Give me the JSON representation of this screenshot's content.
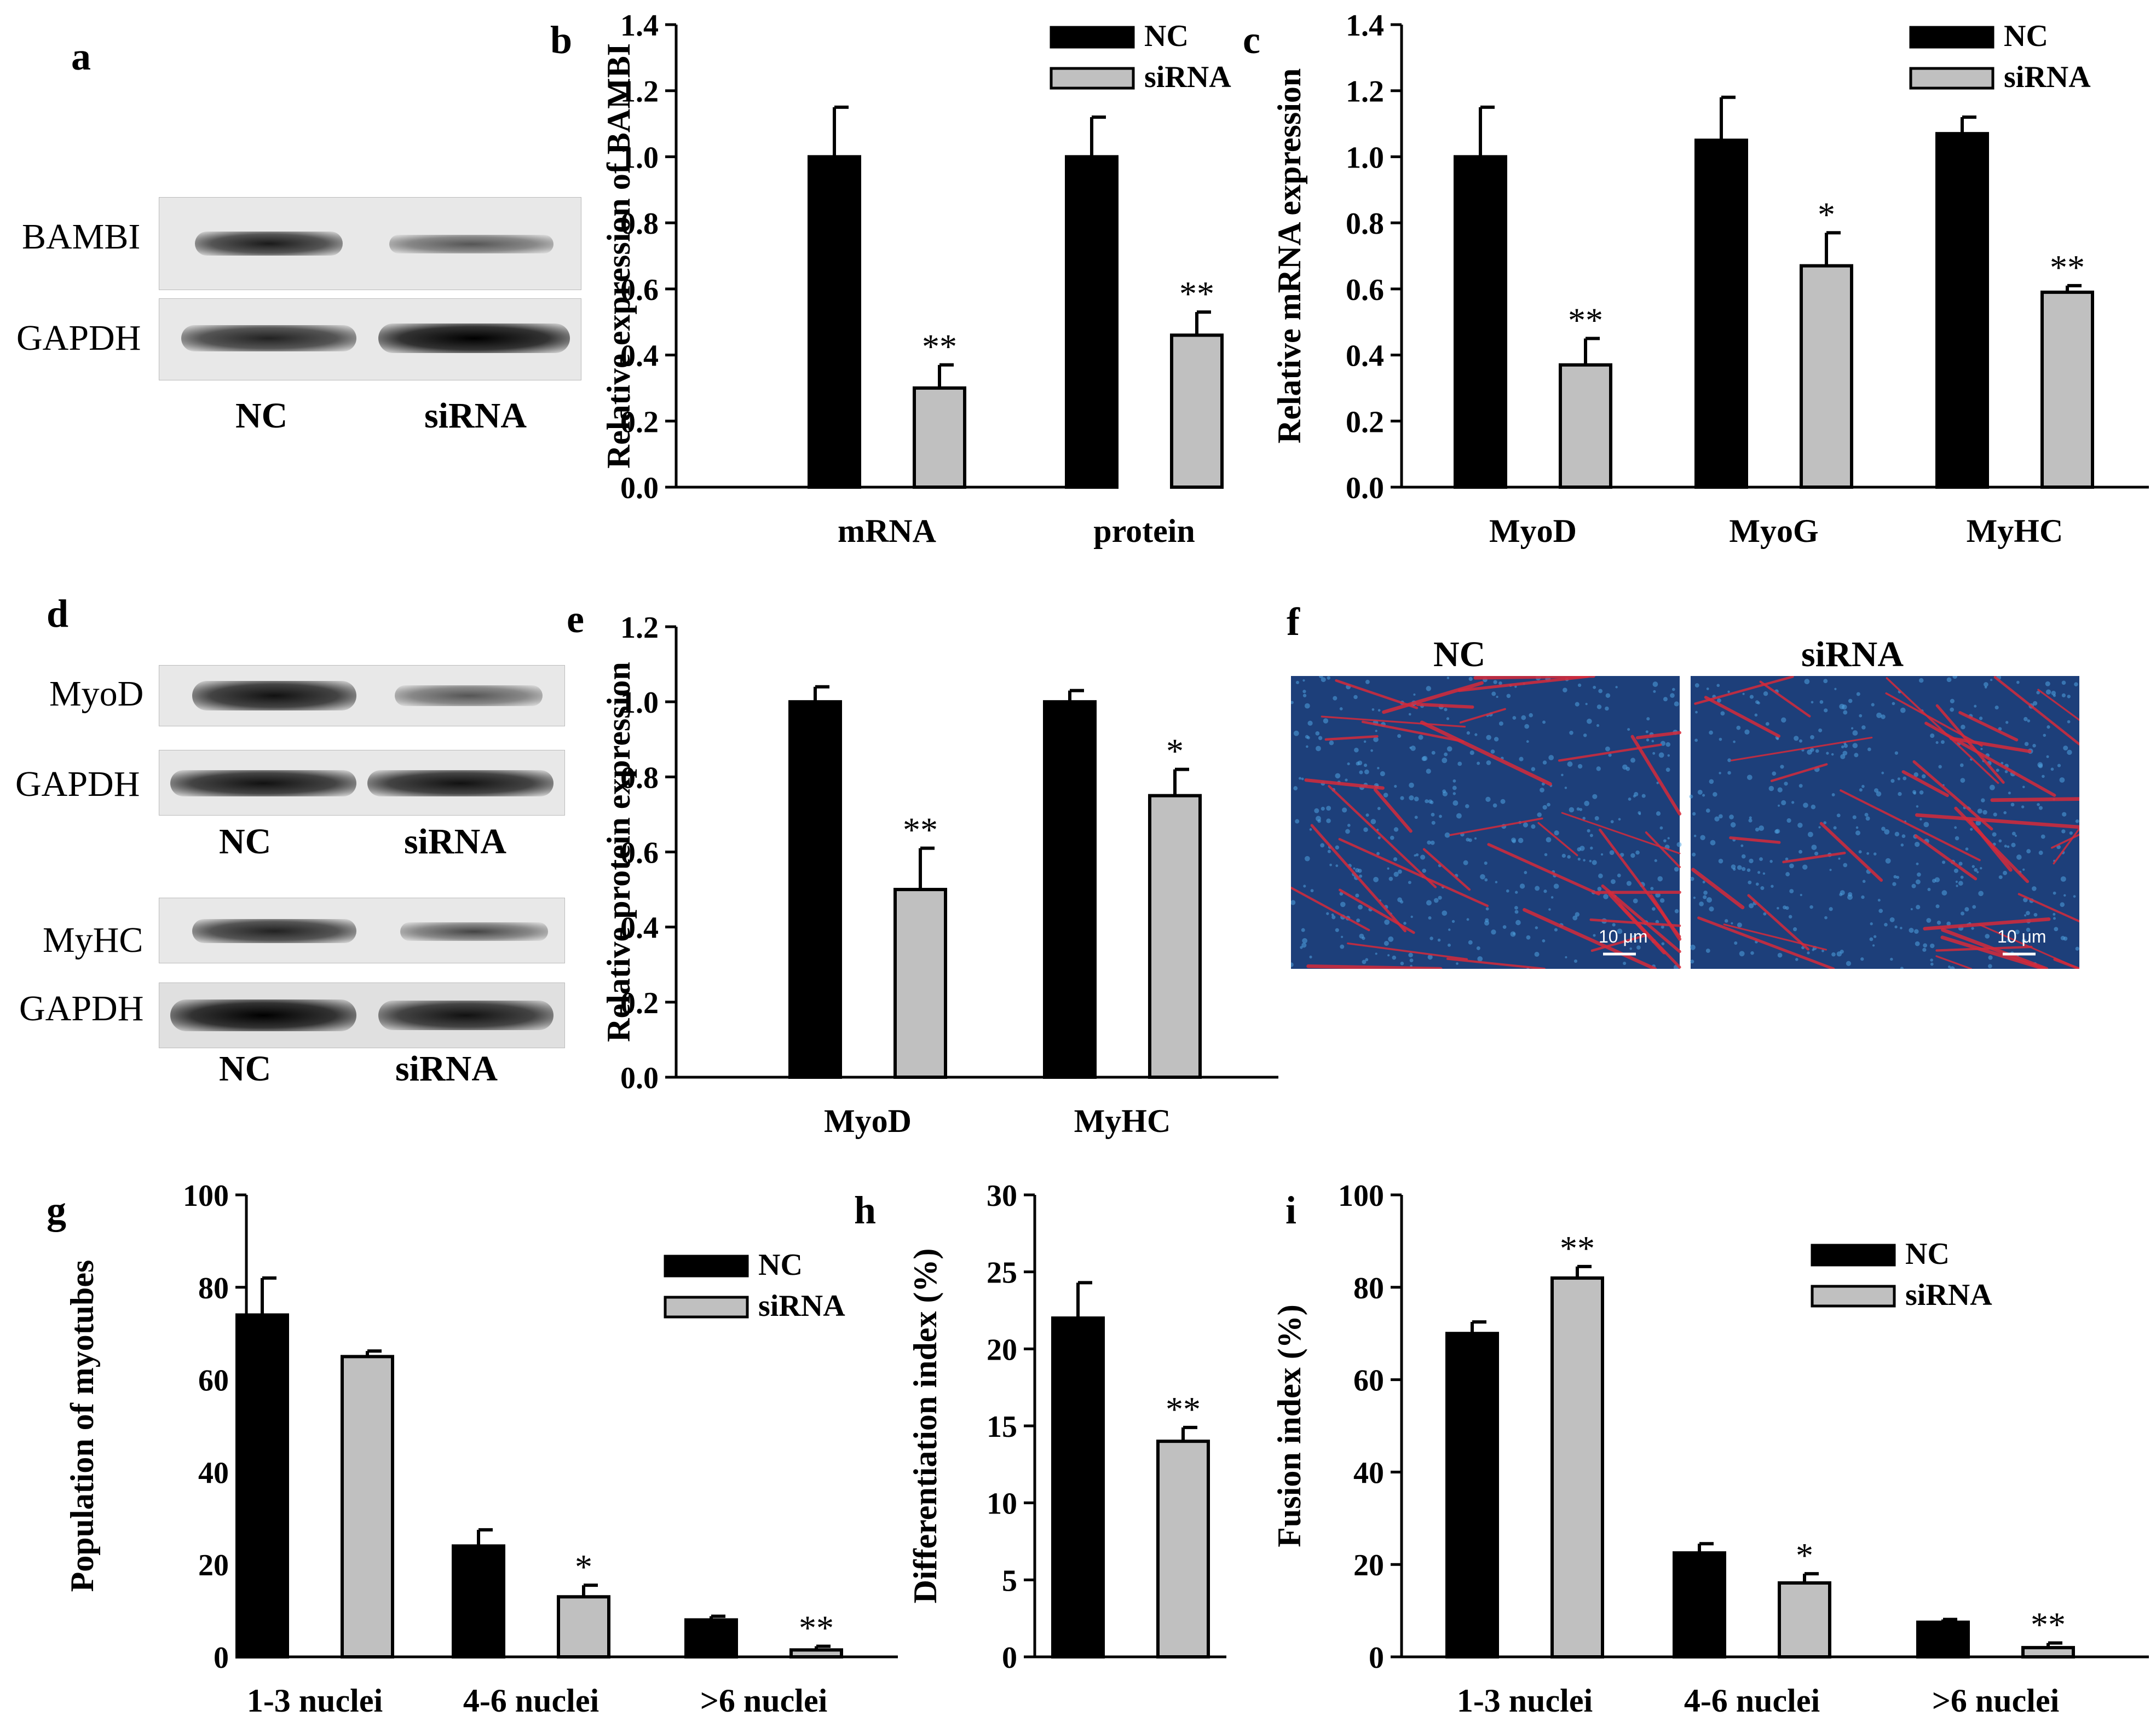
{
  "panels": {
    "a": {
      "letter": "a",
      "blot_labels": [
        "BAMBI",
        "GAPDH"
      ],
      "lanes": [
        "NC",
        "siRNA"
      ]
    },
    "d": {
      "letter": "d",
      "blot1_labels": [
        "MyoD",
        "GAPDH"
      ],
      "blot2_labels": [
        "MyHC",
        "GAPDH"
      ],
      "lanes": [
        "NC",
        "siRNA"
      ]
    },
    "f": {
      "letter": "f",
      "image_titles": [
        "NC",
        "siRNA"
      ],
      "scale_bar": "10 μm"
    }
  },
  "colors": {
    "nc": "#000000",
    "sirna": "#c0c0c0",
    "nuclei_bg": "#1d3f7a",
    "myotube": "#d62a3a"
  },
  "chart_data": [
    {
      "id": "b",
      "letter": "b",
      "type": "bar",
      "categories": [
        "mRNA",
        "protein"
      ],
      "series": [
        {
          "name": "NC",
          "values": [
            1.0,
            1.0
          ],
          "errors": [
            0.15,
            0.12
          ]
        },
        {
          "name": "siRNA",
          "values": [
            0.3,
            0.46
          ],
          "errors": [
            0.07,
            0.07
          ]
        }
      ],
      "significance": {
        "siRNA": [
          "**",
          "**"
        ]
      },
      "ylabel": "Relative expression of BAMBI",
      "ylim": [
        0,
        1.4
      ],
      "yticks": [
        "0.0",
        "0.2",
        "0.4",
        "0.6",
        "0.8",
        "1.0",
        "1.2",
        "1.4"
      ],
      "legend": "top-right"
    },
    {
      "id": "c",
      "letter": "c",
      "type": "bar",
      "categories": [
        "MyoD",
        "MyoG",
        "MyHC"
      ],
      "series": [
        {
          "name": "NC",
          "values": [
            1.0,
            1.05,
            1.07
          ],
          "errors": [
            0.15,
            0.13,
            0.05
          ]
        },
        {
          "name": "siRNA",
          "values": [
            0.37,
            0.67,
            0.59
          ],
          "errors": [
            0.08,
            0.1,
            0.02
          ]
        }
      ],
      "significance": {
        "siRNA": [
          "**",
          "*",
          "**"
        ]
      },
      "ylabel": "Relative mRNA expression",
      "ylim": [
        0,
        1.4
      ],
      "yticks": [
        "0.0",
        "0.2",
        "0.4",
        "0.6",
        "0.8",
        "1.0",
        "1.2",
        "1.4"
      ],
      "legend": "top-right"
    },
    {
      "id": "e",
      "letter": "e",
      "type": "bar",
      "categories": [
        "MyoD",
        "MyHC"
      ],
      "series": [
        {
          "name": "NC",
          "values": [
            1.0,
            1.0
          ],
          "errors": [
            0.04,
            0.03
          ]
        },
        {
          "name": "siRNA",
          "values": [
            0.5,
            0.75
          ],
          "errors": [
            0.11,
            0.07
          ]
        }
      ],
      "significance": {
        "siRNA": [
          "**",
          "*"
        ]
      },
      "ylabel": "Relative protein expression",
      "ylim": [
        0,
        1.2
      ],
      "yticks": [
        "0.0",
        "0.2",
        "0.4",
        "0.6",
        "0.8",
        "1.0",
        "1.2"
      ],
      "legend": "none"
    },
    {
      "id": "g",
      "letter": "g",
      "type": "bar",
      "categories": [
        "1-3 nuclei",
        "4-6 nuclei",
        ">6 nuclei"
      ],
      "series": [
        {
          "name": "NC",
          "values": [
            74,
            24,
            8
          ],
          "errors": [
            8,
            3.5,
            0.8
          ]
        },
        {
          "name": "siRNA",
          "values": [
            65,
            13,
            1.5
          ],
          "errors": [
            1.2,
            2.5,
            0.8
          ]
        }
      ],
      "significance": {
        "siRNA": [
          "",
          "*",
          "**"
        ]
      },
      "ylabel": "Population of myotubes",
      "ylim": [
        0,
        100
      ],
      "yticks": [
        "0",
        "20",
        "40",
        "60",
        "80",
        "100"
      ],
      "legend": "right"
    },
    {
      "id": "h",
      "letter": "h",
      "type": "bar",
      "categories": [
        ""
      ],
      "series": [
        {
          "name": "NC",
          "values": [
            22
          ],
          "errors": [
            2.3
          ]
        },
        {
          "name": "siRNA",
          "values": [
            14
          ],
          "errors": [
            0.9
          ]
        }
      ],
      "significance": {
        "siRNA": [
          "**"
        ]
      },
      "ylabel": "Differentiation index (%)",
      "ylim": [
        0,
        30
      ],
      "yticks": [
        "0",
        "5",
        "10",
        "15",
        "20",
        "25",
        "30"
      ],
      "legend": "none"
    },
    {
      "id": "i",
      "letter": "i",
      "type": "bar",
      "categories": [
        "1-3 nuclei",
        "4-6 nuclei",
        ">6 nuclei"
      ],
      "series": [
        {
          "name": "NC",
          "values": [
            70,
            22.5,
            7.5
          ],
          "errors": [
            2.5,
            2.0,
            0.6
          ]
        },
        {
          "name": "siRNA",
          "values": [
            82,
            16,
            2
          ],
          "errors": [
            2.5,
            2.0,
            1.0
          ]
        }
      ],
      "significance": {
        "siRNA": [
          "**",
          "*",
          "**"
        ]
      },
      "ylabel": "Fusion index  (%)",
      "ylim": [
        0,
        100
      ],
      "yticks": [
        "0",
        "20",
        "40",
        "60",
        "80",
        "100"
      ],
      "legend": "right"
    }
  ]
}
